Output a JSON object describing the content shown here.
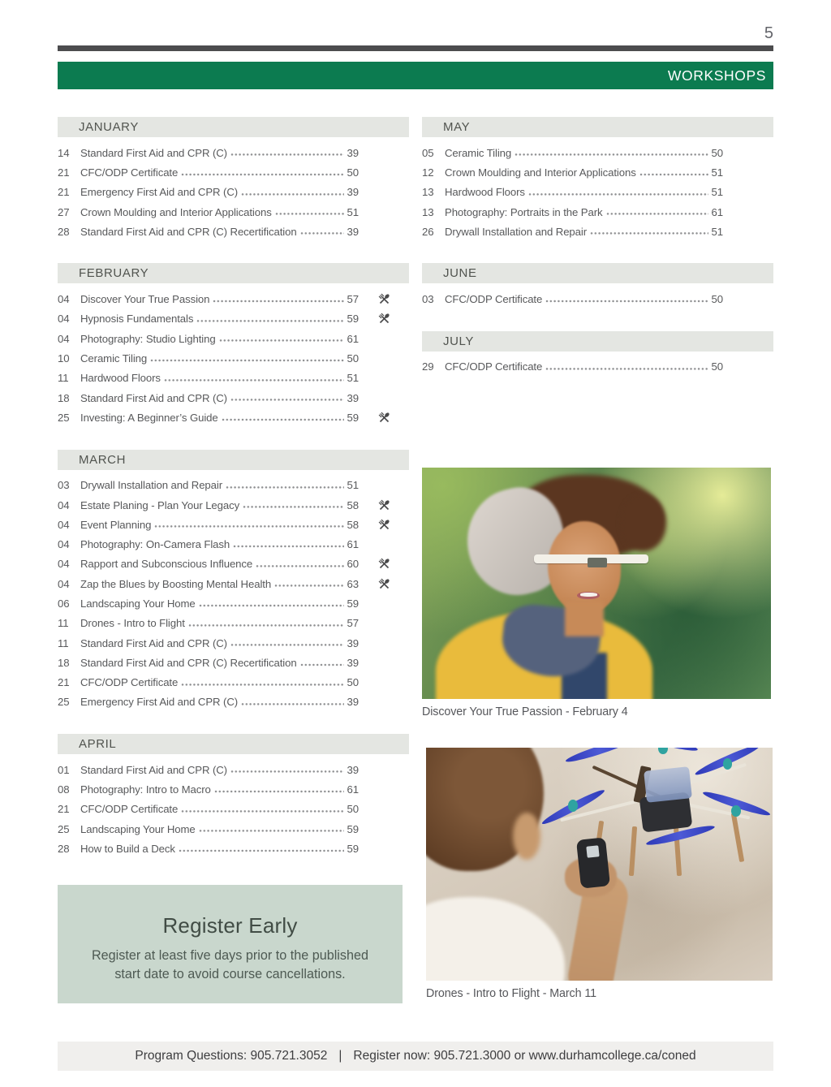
{
  "page_number": "5",
  "banner": {
    "title": "WORKSHOPS"
  },
  "months": [
    {
      "name": "JANUARY",
      "items": [
        {
          "day": "14",
          "title": "Standard First Aid and CPR (C)",
          "page": "39",
          "meal_icon": false
        },
        {
          "day": "21",
          "title": "CFC/ODP Certificate",
          "page": "50",
          "meal_icon": false
        },
        {
          "day": "21",
          "title": "Emergency First Aid and CPR (C)",
          "page": "39",
          "meal_icon": false
        },
        {
          "day": "27",
          "title": "Crown Moulding and Interior Applications",
          "page": "51",
          "meal_icon": false
        },
        {
          "day": "28",
          "title": "Standard First Aid and CPR (C) Recertification",
          "page": "39",
          "meal_icon": false
        }
      ]
    },
    {
      "name": "FEBRUARY",
      "items": [
        {
          "day": "04",
          "title": "Discover Your True Passion",
          "page": "57",
          "meal_icon": true
        },
        {
          "day": "04",
          "title": "Hypnosis Fundamentals",
          "page": "59",
          "meal_icon": true
        },
        {
          "day": "04",
          "title": "Photography: Studio Lighting",
          "page": "61",
          "meal_icon": false
        },
        {
          "day": "10",
          "title": "Ceramic Tiling",
          "page": "50",
          "meal_icon": false
        },
        {
          "day": "11",
          "title": "Hardwood Floors",
          "page": "51",
          "meal_icon": false
        },
        {
          "day": "18",
          "title": "Standard First Aid and CPR (C)",
          "page": "39",
          "meal_icon": false
        },
        {
          "day": "25",
          "title": "Investing: A Beginner’s Guide",
          "page": "59",
          "meal_icon": true
        }
      ]
    },
    {
      "name": "MARCH",
      "items": [
        {
          "day": "03",
          "title": "Drywall Installation and Repair",
          "page": "51",
          "meal_icon": false
        },
        {
          "day": "04",
          "title": "Estate Planing - Plan Your Legacy",
          "page": "58",
          "meal_icon": true
        },
        {
          "day": "04",
          "title": "Event Planning",
          "page": "58",
          "meal_icon": true
        },
        {
          "day": "04",
          "title": "Photography: On-Camera Flash",
          "page": "61",
          "meal_icon": false
        },
        {
          "day": "04",
          "title": "Rapport and Subconscious Influence",
          "page": "60",
          "meal_icon": true
        },
        {
          "day": "04",
          "title": "Zap the Blues by Boosting Mental Health",
          "page": "63",
          "meal_icon": true
        },
        {
          "day": "06",
          "title": "Landscaping Your Home",
          "page": "59",
          "meal_icon": false
        },
        {
          "day": "11",
          "title": "Drones - Intro to Flight",
          "page": "57",
          "meal_icon": false
        },
        {
          "day": "11",
          "title": "Standard First Aid and CPR (C)",
          "page": "39",
          "meal_icon": false
        },
        {
          "day": "18",
          "title": "Standard First Aid and CPR (C) Recertification",
          "page": "39",
          "meal_icon": false
        },
        {
          "day": "21",
          "title": "CFC/ODP Certificate",
          "page": "50",
          "meal_icon": false
        },
        {
          "day": "25",
          "title": "Emergency First Aid and CPR (C)",
          "page": "39",
          "meal_icon": false
        }
      ]
    },
    {
      "name": "APRIL",
      "items": [
        {
          "day": "01",
          "title": "Standard First Aid and CPR (C)",
          "page": "39",
          "meal_icon": false
        },
        {
          "day": "08",
          "title": "Photography: Intro to Macro",
          "page": "61",
          "meal_icon": false
        },
        {
          "day": "21",
          "title": "CFC/ODP Certificate",
          "page": "50",
          "meal_icon": false
        },
        {
          "day": "25",
          "title": "Landscaping Your Home",
          "page": "59",
          "meal_icon": false
        },
        {
          "day": "28",
          "title": "How to Build a Deck",
          "page": "59",
          "meal_icon": false
        }
      ]
    },
    {
      "name": "MAY",
      "items": [
        {
          "day": "05",
          "title": "Ceramic Tiling",
          "page": "50",
          "meal_icon": false
        },
        {
          "day": "12",
          "title": "Crown Moulding and Interior Applications",
          "page": "51",
          "meal_icon": false
        },
        {
          "day": "13",
          "title": "Hardwood Floors",
          "page": "51",
          "meal_icon": false
        },
        {
          "day": "13",
          "title": "Photography: Portraits in the Park",
          "page": "61",
          "meal_icon": false
        },
        {
          "day": "26",
          "title": "Drywall Installation and Repair",
          "page": "51",
          "meal_icon": false
        }
      ]
    },
    {
      "name": "JUNE",
      "items": [
        {
          "day": "03",
          "title": "CFC/ODP Certificate",
          "page": "50",
          "meal_icon": false
        }
      ]
    },
    {
      "name": "JULY",
      "items": [
        {
          "day": "29",
          "title": "CFC/ODP Certificate",
          "page": "50",
          "meal_icon": false
        }
      ]
    }
  ],
  "photos": [
    {
      "caption": "Discover Your True Passion - February 4"
    },
    {
      "caption": "Drones - Intro to Flight - March 11"
    }
  ],
  "register_early": {
    "title": "Register Early",
    "body": "Register at least five days prior to the published start date to avoid course cancellations."
  },
  "footer": {
    "left": "Program Questions: 905.721.3052",
    "divider": "|",
    "right": "Register now: 905.721.3000 or www.durhamcollege.ca/coned"
  },
  "icons": {
    "meal_icon": "crossed-fork-and-spoon"
  },
  "colors": {
    "banner_green": "#0C7B50",
    "month_header_bg": "#E4E6E2",
    "register_box_bg": "#C9D7CD",
    "footer_bar_bg": "#F0EFED",
    "top_rule": "#4C4C4E"
  }
}
